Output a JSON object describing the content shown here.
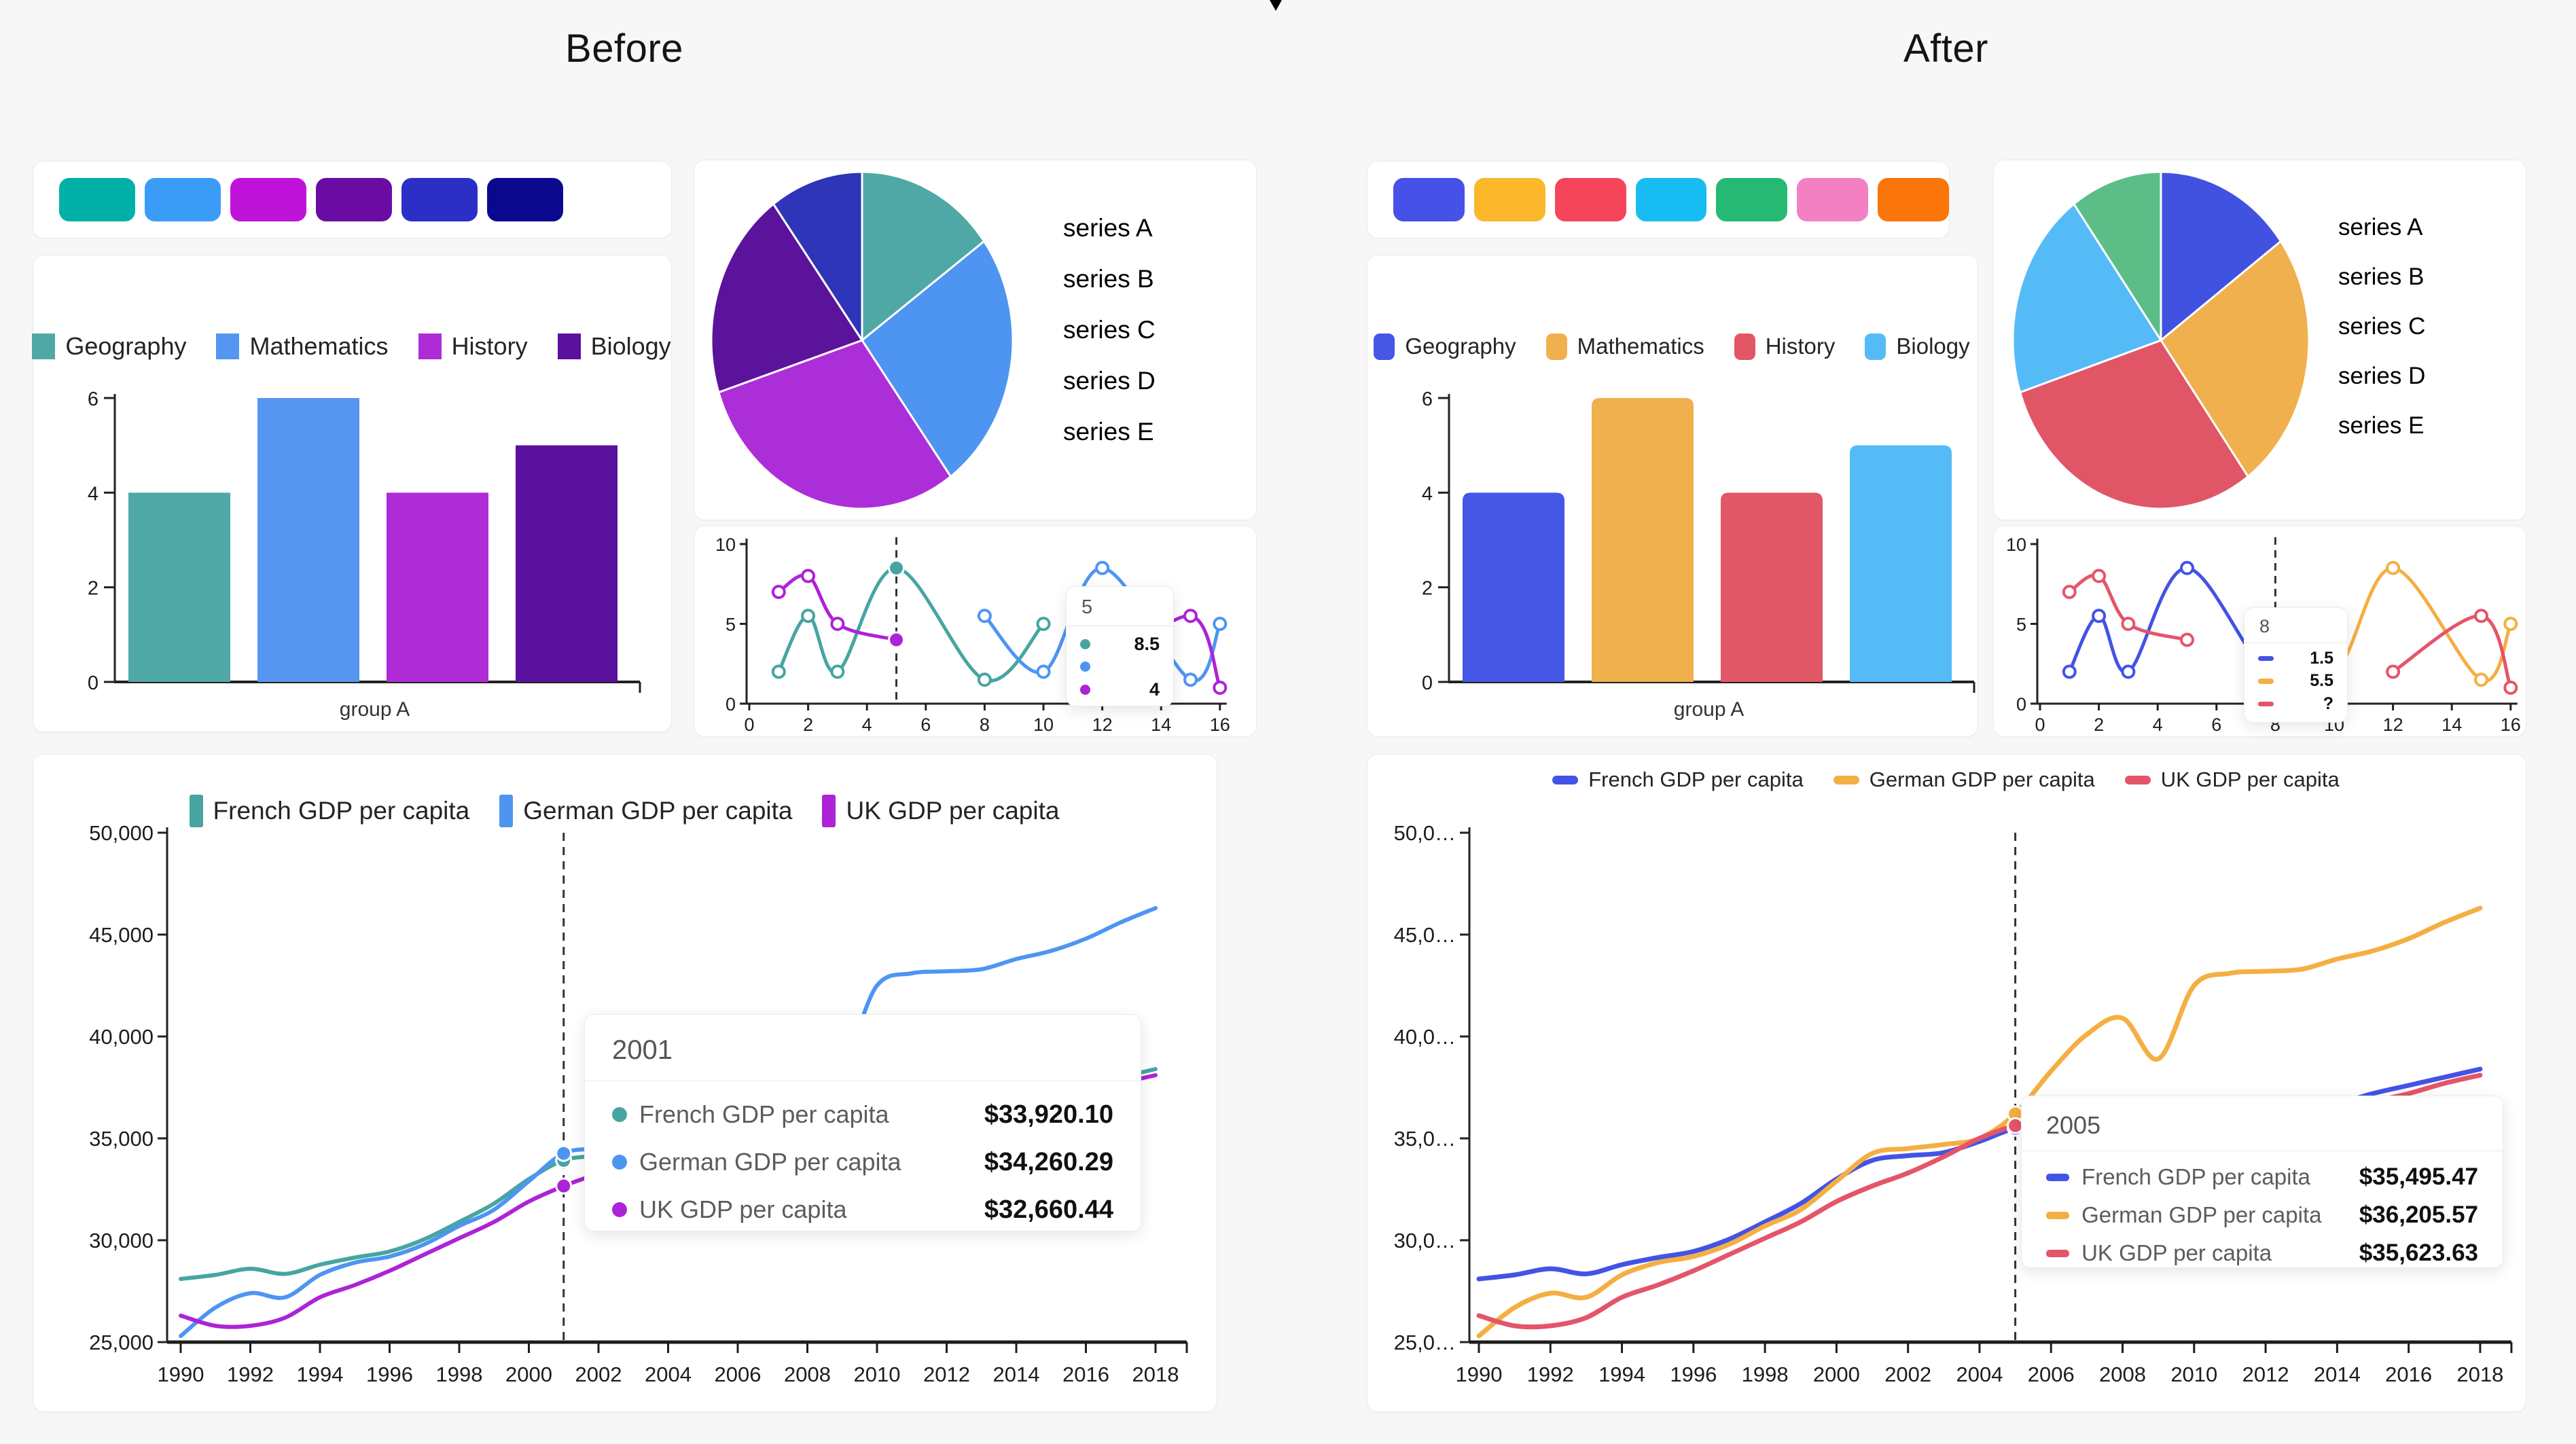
{
  "titles": {
    "before": "Before",
    "after": "After"
  },
  "swatches": {
    "before": [
      "#01B1A7",
      "#3B9CF8",
      "#C013D9",
      "#6A0CA3",
      "#2B2FC6",
      "#0A098E"
    ],
    "after": [
      "#4651E8",
      "#FCB72B",
      "#F4455A",
      "#17BCF2",
      "#26B973",
      "#F480C4",
      "#FA750A"
    ]
  },
  "chart_data": [
    {
      "id": "before-bar",
      "type": "bar",
      "panel": "before",
      "categories": [
        "group A"
      ],
      "yticks": [
        0,
        2,
        4,
        6
      ],
      "ylim": [
        0,
        6
      ],
      "series": [
        {
          "name": "Geography",
          "color": "#4FA8A5",
          "values": [
            4
          ]
        },
        {
          "name": "Mathematics",
          "color": "#5596F0",
          "values": [
            6
          ]
        },
        {
          "name": "History",
          "color": "#AE2BD5",
          "values": [
            4
          ]
        },
        {
          "name": "Biology",
          "color": "#5A119E",
          "values": [
            5
          ]
        }
      ],
      "legend_marker": "square",
      "bar_radius": 0
    },
    {
      "id": "after-bar",
      "type": "bar",
      "panel": "after",
      "categories": [
        "group A"
      ],
      "yticks": [
        0,
        2,
        4,
        6
      ],
      "ylim": [
        0,
        6
      ],
      "series": [
        {
          "name": "Geography",
          "color": "#4656E5",
          "values": [
            4
          ]
        },
        {
          "name": "Mathematics",
          "color": "#F0B04E",
          "values": [
            6
          ]
        },
        {
          "name": "History",
          "color": "#E25765",
          "values": [
            4
          ]
        },
        {
          "name": "Biology",
          "color": "#55BBF7",
          "values": [
            5
          ]
        }
      ],
      "legend_marker": "roundsq",
      "bar_radius": 12
    },
    {
      "id": "before-pie",
      "type": "pie",
      "panel": "before",
      "labels": [
        "series A",
        "series B",
        "series C",
        "series D",
        "series E"
      ],
      "values": [
        15,
        25,
        30,
        20,
        10
      ],
      "colors": [
        "#4FA8A5",
        "#4E95F2",
        "#AC2ED9",
        "#5B139B",
        "#2E35B8"
      ],
      "legend_marker": "psquare",
      "legend_position": "right"
    },
    {
      "id": "after-pie",
      "type": "pie",
      "panel": "after",
      "labels": [
        "series A",
        "series B",
        "series C",
        "series D",
        "series E"
      ],
      "values": [
        15,
        25,
        30,
        20,
        10
      ],
      "colors": [
        "#4152E0",
        "#F0B04E",
        "#E05666",
        "#55BBF7",
        "#5CBE86"
      ],
      "legend_marker": "circle",
      "legend_position": "right"
    },
    {
      "id": "before-mini",
      "type": "line",
      "panel": "before",
      "xlim": [
        0,
        16
      ],
      "ylim": [
        0,
        10
      ],
      "xticks": [
        0,
        2,
        4,
        6,
        8,
        10,
        12,
        14,
        16
      ],
      "yticks": [
        0,
        5,
        10
      ],
      "cursor_x": 5,
      "series": [
        {
          "name": "series 1",
          "color": "#46A5A1",
          "segments": [
            [
              [
                1,
                2
              ],
              [
                2,
                5.5
              ],
              [
                3,
                2
              ],
              [
                5,
                8.5
              ],
              [
                8,
                1.5
              ],
              [
                10,
                5
              ]
            ]
          ]
        },
        {
          "name": "series 2",
          "color": "#4E95F2",
          "segments": [
            [
              [
                8,
                5.5
              ],
              [
                10,
                2
              ],
              [
                12,
                8.5
              ],
              [
                15,
                1.5
              ],
              [
                16,
                5
              ]
            ]
          ]
        },
        {
          "name": "series 3",
          "color": "#AD23D6",
          "segments": [
            [
              [
                1,
                7
              ],
              [
                2,
                8
              ],
              [
                3,
                5
              ],
              [
                5,
                4
              ]
            ],
            [
              [
                12,
                2
              ],
              [
                15,
                5.5
              ],
              [
                16,
                1
              ]
            ]
          ]
        }
      ],
      "highlight_points": [
        {
          "series": 0,
          "x": 5,
          "y": 8.5
        },
        {
          "series": 2,
          "x": 5,
          "y": 4
        }
      ],
      "tooltip": {
        "header": "5",
        "marker": "circle",
        "rows": [
          {
            "color": "#46A5A1",
            "value": "8.5"
          },
          {
            "color": "#4E95F2",
            "value": ""
          },
          {
            "color": "#AD23D6",
            "value": "4"
          }
        ]
      }
    },
    {
      "id": "after-mini",
      "type": "line",
      "panel": "after",
      "xlim": [
        0,
        16
      ],
      "ylim": [
        0,
        10
      ],
      "xticks": [
        0,
        2,
        4,
        6,
        8,
        10,
        12,
        14,
        16
      ],
      "yticks": [
        0,
        5,
        10
      ],
      "cursor_x": 8,
      "series": [
        {
          "name": "series 1",
          "color": "#4353E5",
          "segments": [
            [
              [
                1,
                2
              ],
              [
                2,
                5.5
              ],
              [
                3,
                2
              ],
              [
                5,
                8.5
              ],
              [
                8,
                1.5
              ],
              [
                10,
                5
              ]
            ]
          ]
        },
        {
          "name": "series 2",
          "color": "#F4AF42",
          "segments": [
            [
              [
                8,
                5.5
              ],
              [
                10,
                2
              ],
              [
                12,
                8.5
              ],
              [
                15,
                1.5
              ],
              [
                16,
                5
              ]
            ]
          ]
        },
        {
          "name": "series 3",
          "color": "#E4556A",
          "segments": [
            [
              [
                1,
                7
              ],
              [
                2,
                8
              ],
              [
                3,
                5
              ],
              [
                5,
                4
              ]
            ],
            [
              [
                12,
                2
              ],
              [
                15,
                5.5
              ],
              [
                16,
                1
              ]
            ]
          ]
        }
      ],
      "highlight_points": [],
      "tooltip": {
        "header": "8",
        "marker": "pill",
        "rows": [
          {
            "color": "#4353E5",
            "value": "1.5"
          },
          {
            "color": "#F4AF42",
            "value": "5.5"
          },
          {
            "color": "#E4556A",
            "value": "?"
          }
        ]
      }
    },
    {
      "id": "before-gdp",
      "type": "line",
      "panel": "before",
      "years": [
        1990,
        1991,
        1992,
        1993,
        1994,
        1995,
        1996,
        1997,
        1998,
        1999,
        2000,
        2001,
        2002,
        2003,
        2004,
        2005,
        2006,
        2007,
        2008,
        2009,
        2010,
        2011,
        2012,
        2013,
        2014,
        2015,
        2016,
        2017,
        2018
      ],
      "xtick_labels": [
        "1990",
        "1992",
        "1994",
        "1996",
        "1998",
        "2000",
        "2002",
        "2004",
        "2006",
        "2008",
        "2010",
        "2012",
        "2014",
        "2016",
        "2018"
      ],
      "ytick_labels": [
        "25,000",
        "30,000",
        "35,000",
        "40,000",
        "45,000",
        "50,000"
      ],
      "ylim": [
        25000,
        50000
      ],
      "cursor_x": 2001,
      "legend_marker": "tallrect",
      "series": [
        {
          "name": "French GDP per capita",
          "color": "#46A5A1",
          "values": [
            28100,
            28300,
            28600,
            28350,
            28800,
            29150,
            29450,
            30050,
            30900,
            31800,
            33000,
            33920.1,
            34150,
            34300,
            34850,
            35495.47,
            35700,
            36100,
            36300,
            35300,
            36000,
            36400,
            36300,
            36400,
            36700,
            37200,
            37600,
            38000,
            38400
          ]
        },
        {
          "name": "German GDP per capita",
          "color": "#4E95F2",
          "values": [
            25300,
            26700,
            27400,
            27200,
            28300,
            28900,
            29200,
            29800,
            30700,
            31500,
            32900,
            34260.29,
            34500,
            34700,
            35000,
            36205.57,
            38300,
            40100,
            40900,
            38900,
            42500,
            43100,
            43200,
            43300,
            43800,
            44200,
            44800,
            45600,
            46300
          ]
        },
        {
          "name": "UK GDP per capita",
          "color": "#AD23D6",
          "values": [
            26300,
            25800,
            25800,
            26200,
            27200,
            27800,
            28500,
            29300,
            30100,
            30900,
            31900,
            32660.44,
            33300,
            34100,
            35000,
            35623.63,
            35800,
            36100,
            35700,
            34700,
            35400,
            35600,
            35700,
            35900,
            36300,
            36800,
            37200,
            37700,
            38100
          ]
        }
      ],
      "tooltip": {
        "header": "2001",
        "marker": "circle",
        "rows": [
          {
            "label": "French GDP per capita",
            "color": "#46A5A1",
            "value": "$33,920.10"
          },
          {
            "label": "German GDP per capita",
            "color": "#4E95F2",
            "value": "$34,260.29"
          },
          {
            "label": "UK GDP per capita",
            "color": "#AD23D6",
            "value": "$32,660.44"
          }
        ]
      }
    },
    {
      "id": "after-gdp",
      "type": "line",
      "panel": "after",
      "years": [
        1990,
        1991,
        1992,
        1993,
        1994,
        1995,
        1996,
        1997,
        1998,
        1999,
        2000,
        2001,
        2002,
        2003,
        2004,
        2005,
        2006,
        2007,
        2008,
        2009,
        2010,
        2011,
        2012,
        2013,
        2014,
        2015,
        2016,
        2017,
        2018
      ],
      "xtick_labels": [
        "1990",
        "1992",
        "1994",
        "1996",
        "1998",
        "2000",
        "2002",
        "2004",
        "2006",
        "2008",
        "2010",
        "2012",
        "2014",
        "2016",
        "2018"
      ],
      "ytick_labels": [
        "25,0…",
        "30,0…",
        "35,0…",
        "40,0…",
        "45,0…",
        "50,0…"
      ],
      "ylim": [
        25000,
        50000
      ],
      "cursor_x": 2005,
      "legend_marker": "pill",
      "series": [
        {
          "name": "French GDP per capita",
          "color": "#4353E5",
          "values": [
            28100,
            28300,
            28600,
            28350,
            28800,
            29150,
            29450,
            30050,
            30900,
            31800,
            33000,
            33920.1,
            34150,
            34300,
            34850,
            35495.47,
            35700,
            36100,
            36300,
            35300,
            36000,
            36400,
            36300,
            36400,
            36700,
            37200,
            37600,
            38000,
            38400
          ]
        },
        {
          "name": "German GDP per capita",
          "color": "#F4AF42",
          "values": [
            25300,
            26700,
            27400,
            27200,
            28300,
            28900,
            29200,
            29800,
            30700,
            31500,
            32900,
            34260.29,
            34500,
            34700,
            35000,
            36205.57,
            38300,
            40100,
            40900,
            38900,
            42500,
            43100,
            43200,
            43300,
            43800,
            44200,
            44800,
            45600,
            46300
          ]
        },
        {
          "name": "UK GDP per capita",
          "color": "#E4556A",
          "values": [
            26300,
            25800,
            25800,
            26200,
            27200,
            27800,
            28500,
            29300,
            30100,
            30900,
            31900,
            32660.44,
            33300,
            34100,
            35000,
            35623.63,
            35800,
            36100,
            35700,
            34700,
            35400,
            35600,
            35700,
            35900,
            36300,
            36800,
            37200,
            37700,
            38100
          ]
        }
      ],
      "tooltip": {
        "header": "2005",
        "marker": "pill",
        "rows": [
          {
            "label": "French GDP per capita",
            "color": "#4353E5",
            "value": "$35,495.47"
          },
          {
            "label": "German GDP per capita",
            "color": "#F4AF42",
            "value": "$36,205.57"
          },
          {
            "label": "UK GDP per capita",
            "color": "#E4556A",
            "value": "$35,623.63"
          }
        ]
      }
    }
  ]
}
